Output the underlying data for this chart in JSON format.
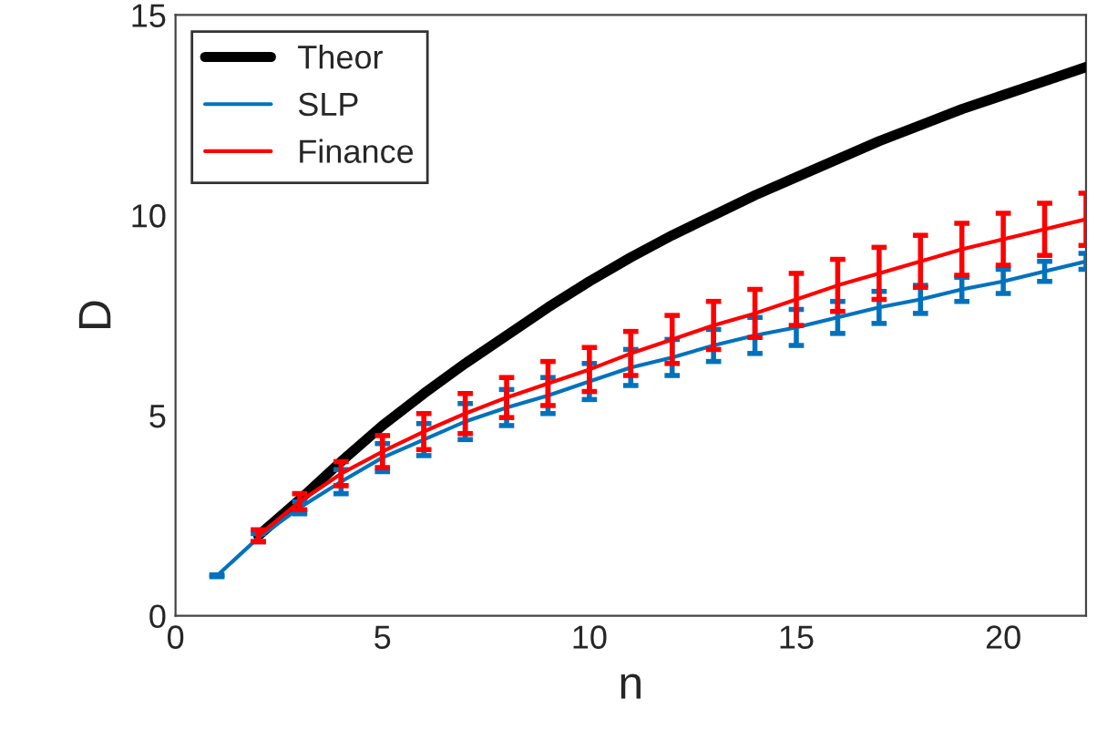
{
  "chart_data": {
    "type": "line",
    "xlabel": "n",
    "ylabel": "D",
    "xlim": [
      0,
      22
    ],
    "ylim": [
      0,
      15
    ],
    "xticks": [
      0,
      5,
      10,
      15,
      20
    ],
    "yticks": [
      0,
      5,
      10,
      15
    ],
    "legend": "top left",
    "grid": false,
    "line_style": "solid",
    "series": [
      {
        "name": "Theor",
        "color": "#000000",
        "x": [
          2,
          3,
          4,
          5,
          6,
          7,
          8,
          9,
          10,
          11,
          12,
          13,
          14,
          15,
          16,
          17,
          18,
          19,
          20,
          21,
          22
        ],
        "values": [
          2.0,
          2.9,
          3.85,
          4.75,
          5.55,
          6.3,
          7.0,
          7.7,
          8.35,
          8.95,
          9.5,
          10.0,
          10.5,
          10.95,
          11.4,
          11.85,
          12.25,
          12.65,
          13.0,
          13.35,
          13.7
        ]
      },
      {
        "name": "SLP",
        "color": "#0072bd",
        "x": [
          1,
          2,
          3,
          4,
          5,
          6,
          7,
          8,
          9,
          10,
          11,
          12,
          13,
          14,
          15,
          16,
          17,
          18,
          19,
          20,
          21,
          22
        ],
        "values": [
          1.0,
          1.95,
          2.7,
          3.35,
          3.95,
          4.4,
          4.85,
          5.2,
          5.5,
          5.85,
          6.2,
          6.45,
          6.75,
          7.0,
          7.2,
          7.45,
          7.7,
          7.9,
          8.15,
          8.35,
          8.6,
          8.85
        ],
        "errors": [
          0.02,
          0.1,
          0.15,
          0.3,
          0.35,
          0.4,
          0.45,
          0.45,
          0.45,
          0.45,
          0.45,
          0.45,
          0.4,
          0.45,
          0.45,
          0.4,
          0.4,
          0.35,
          0.3,
          0.3,
          0.25,
          0.2
        ]
      },
      {
        "name": "Finance",
        "color": "#ff0000",
        "x": [
          2,
          3,
          4,
          5,
          6,
          7,
          8,
          9,
          10,
          11,
          12,
          13,
          14,
          15,
          16,
          17,
          18,
          19,
          20,
          21,
          22
        ],
        "values": [
          2.0,
          2.85,
          3.55,
          4.1,
          4.6,
          5.05,
          5.45,
          5.8,
          6.15,
          6.55,
          6.9,
          7.25,
          7.55,
          7.9,
          8.25,
          8.55,
          8.85,
          9.15,
          9.4,
          9.65,
          9.9
        ],
        "errors": [
          0.15,
          0.2,
          0.3,
          0.4,
          0.45,
          0.5,
          0.5,
          0.55,
          0.55,
          0.55,
          0.6,
          0.6,
          0.6,
          0.65,
          0.65,
          0.65,
          0.65,
          0.65,
          0.65,
          0.65,
          0.65
        ]
      }
    ]
  }
}
